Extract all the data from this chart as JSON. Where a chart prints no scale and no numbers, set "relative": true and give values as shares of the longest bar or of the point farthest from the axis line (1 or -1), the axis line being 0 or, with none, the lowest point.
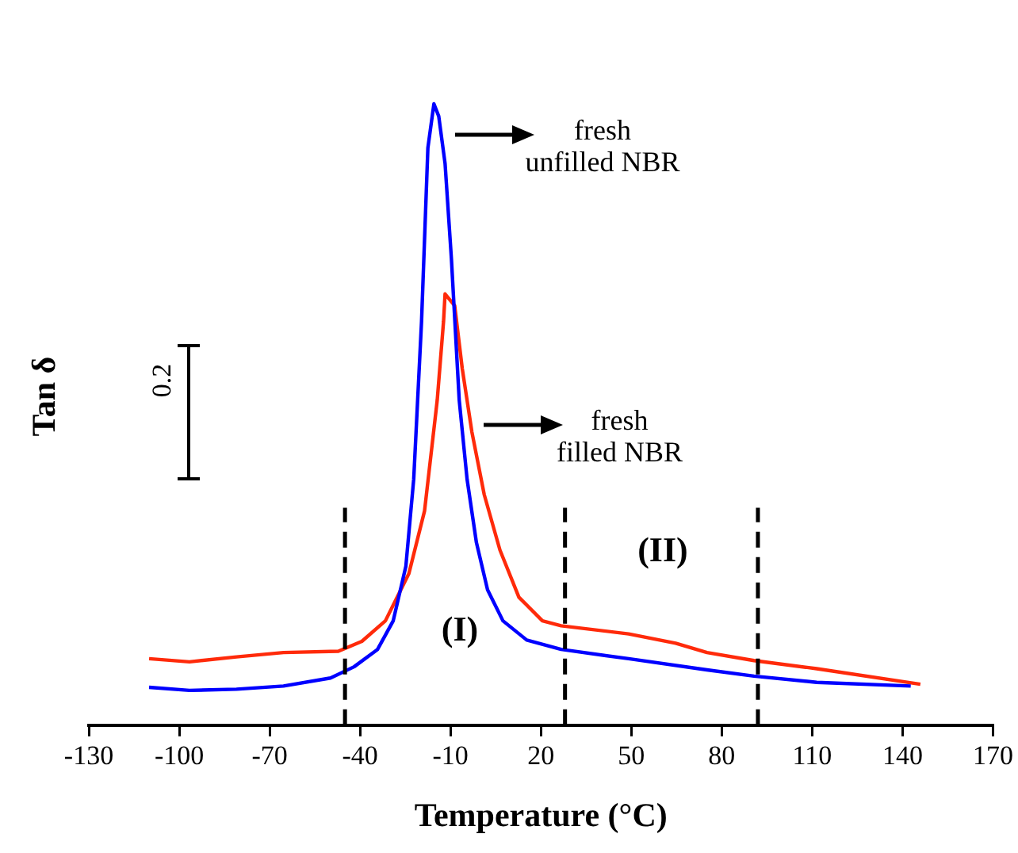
{
  "chart_data": {
    "type": "line",
    "relative": true,
    "xlabel": "Temperature (°C)",
    "ylabel": "Tan δ",
    "xlim": [
      -130,
      170
    ],
    "xticks": [
      -130,
      -100,
      -70,
      -40,
      -10,
      20,
      50,
      80,
      110,
      140,
      170
    ],
    "grid": false,
    "legend": false,
    "marker": "none",
    "line_style": "solid",
    "series": [
      {
        "color": "#0000ff",
        "x": [
          -110,
          -96.6,
          -81,
          -65.4,
          -49.8,
          -42,
          -34.2,
          -29,
          -24.8,
          -22.2,
          -19.6,
          -17.5,
          -15.5,
          -13.9,
          -11.8,
          -9.7,
          -7.1,
          -4.5,
          -1.4,
          2.3,
          7.4,
          15.3,
          26.7,
          49.1,
          75.1,
          90.7,
          111.5,
          142.7
        ],
        "values": [
          0.061,
          0.056,
          0.058,
          0.063,
          0.076,
          0.094,
          0.122,
          0.168,
          0.256,
          0.396,
          0.65,
          0.929,
          1,
          0.98,
          0.904,
          0.751,
          0.523,
          0.396,
          0.294,
          0.218,
          0.168,
          0.137,
          0.122,
          0.107,
          0.089,
          0.079,
          0.069,
          0.063
        ]
      },
      {
        "color": "#ff2a0a",
        "x": [
          -110,
          -96.6,
          -81,
          -65.4,
          -47.2,
          -39.4,
          -31.6,
          -23.8,
          -18.6,
          -14.4,
          -12.3,
          -11.8,
          -8.6,
          -6.1,
          -2.9,
          1.2,
          6.4,
          12.7,
          20.5,
          26.7,
          49.1,
          64.7,
          75.1,
          90.7,
          111.5,
          145.9
        ],
        "values": [
          0.107,
          0.102,
          0.11,
          0.117,
          0.119,
          0.135,
          0.168,
          0.244,
          0.345,
          0.523,
          0.65,
          0.694,
          0.675,
          0.574,
          0.472,
          0.371,
          0.282,
          0.206,
          0.168,
          0.16,
          0.147,
          0.132,
          0.117,
          0.104,
          0.091,
          0.066
        ]
      }
    ],
    "ref_lines": [
      {
        "axis": "x",
        "value": -45,
        "color": "#000000",
        "line_style": "dashed"
      },
      {
        "axis": "x",
        "value": 28,
        "color": "#000000",
        "line_style": "dashed"
      },
      {
        "axis": "x",
        "value": 92,
        "color": "#000000",
        "line_style": "dashed"
      }
    ],
    "annotations": [
      "fresh\nunfilled NBR",
      "fresh\nfilled NBR",
      "(I)",
      "(II)",
      "0.2"
    ]
  }
}
